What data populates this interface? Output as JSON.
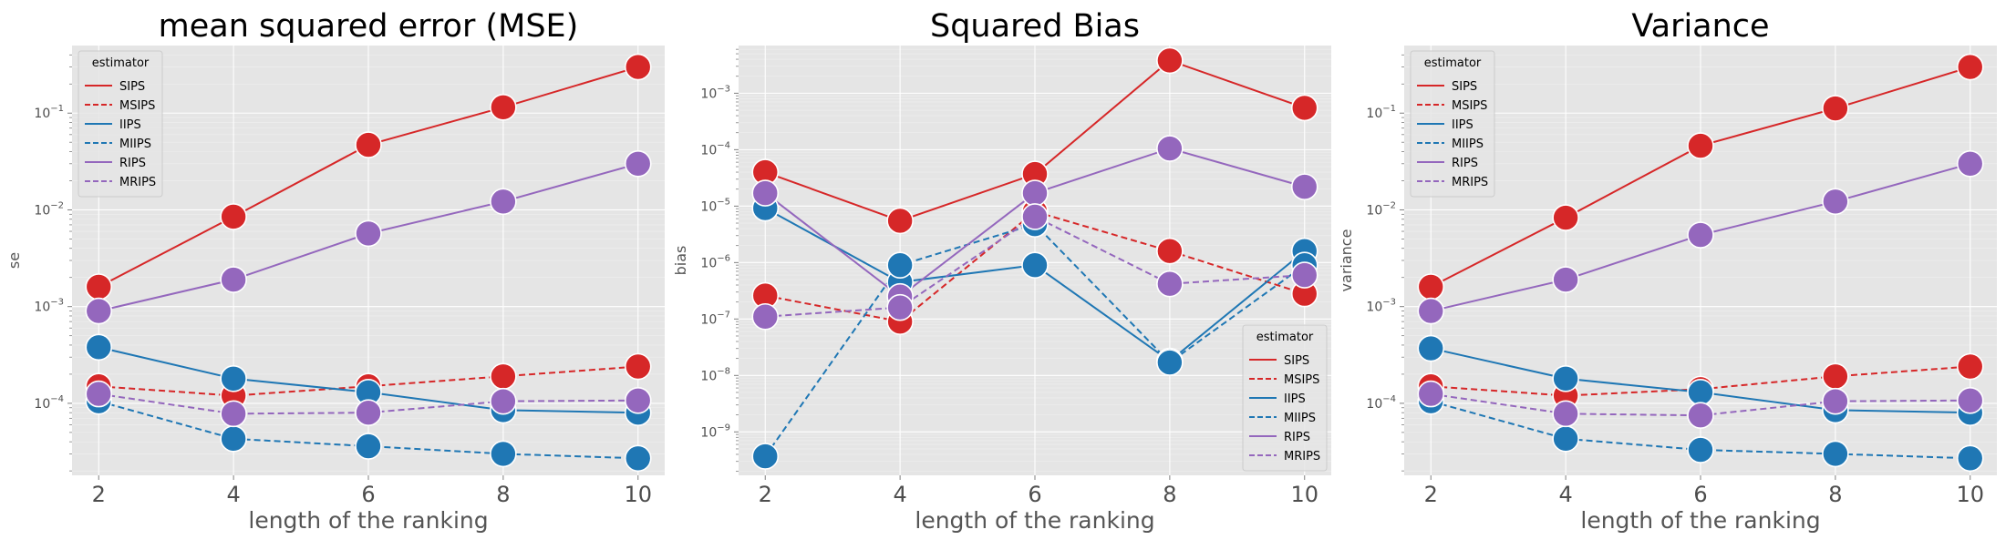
{
  "chart_data": [
    {
      "type": "line",
      "title": "mean squared error (MSE)",
      "xlabel": "length of the ranking",
      "ylabel": "se",
      "yscale": "log",
      "x": [
        2,
        4,
        6,
        8,
        10
      ],
      "xticks": [
        "2",
        "4",
        "6",
        "8",
        "10"
      ],
      "ylim": [
        1.8e-05,
        0.5
      ],
      "yticks": [
        {
          "v": 0.0001,
          "base": "10",
          "exp": "−4"
        },
        {
          "v": 0.001,
          "base": "10",
          "exp": "−3"
        },
        {
          "v": 0.01,
          "base": "10",
          "exp": "−2"
        },
        {
          "v": 0.1,
          "base": "10",
          "exp": "−1"
        }
      ],
      "grid": true,
      "legend": {
        "title": "estimator",
        "placement": "top-left"
      },
      "series": [
        {
          "name": "SIPS",
          "color": "#d62728",
          "dashed": false,
          "values": [
            0.0016,
            0.0085,
            0.047,
            0.115,
            0.3
          ]
        },
        {
          "name": "MSIPS",
          "color": "#d62728",
          "dashed": true,
          "values": [
            0.00015,
            0.00012,
            0.00015,
            0.00019,
            0.00024
          ]
        },
        {
          "name": "IIPS",
          "color": "#1f77b4",
          "dashed": false,
          "values": [
            0.00038,
            0.00018,
            0.00013,
            8.5e-05,
            8e-05
          ]
        },
        {
          "name": "MIIPS",
          "color": "#1f77b4",
          "dashed": true,
          "values": [
            0.000105,
            4.3e-05,
            3.6e-05,
            3e-05,
            2.7e-05
          ]
        },
        {
          "name": "RIPS",
          "color": "#9467bd",
          "dashed": false,
          "values": [
            0.0009,
            0.0019,
            0.0057,
            0.0122,
            0.03
          ]
        },
        {
          "name": "MRIPS",
          "color": "#9467bd",
          "dashed": true,
          "values": [
            0.000125,
            7.8e-05,
            8e-05,
            0.000105,
            0.000107
          ]
        }
      ]
    },
    {
      "type": "line",
      "title": "Squared Bias",
      "xlabel": "length of the ranking",
      "ylabel": "bias",
      "yscale": "log",
      "x": [
        2,
        4,
        6,
        8,
        10
      ],
      "xticks": [
        "2",
        "4",
        "6",
        "8",
        "10"
      ],
      "ylim": [
        1.7e-10,
        0.007
      ],
      "yticks": [
        {
          "v": 1e-09,
          "base": "10",
          "exp": "−9"
        },
        {
          "v": 1e-08,
          "base": "10",
          "exp": "−8"
        },
        {
          "v": 1e-07,
          "base": "10",
          "exp": "−7"
        },
        {
          "v": 1e-06,
          "base": "10",
          "exp": "−6"
        },
        {
          "v": 1e-05,
          "base": "10",
          "exp": "−5"
        },
        {
          "v": 0.0001,
          "base": "10",
          "exp": "−4"
        },
        {
          "v": 0.001,
          "base": "10",
          "exp": "−3"
        }
      ],
      "grid": true,
      "legend": {
        "title": "estimator",
        "placement": "bottom-right"
      },
      "series": [
        {
          "name": "SIPS",
          "color": "#d62728",
          "dashed": false,
          "values": [
            4e-05,
            5.5e-06,
            3.7e-05,
            0.0038,
            0.00055
          ]
        },
        {
          "name": "MSIPS",
          "color": "#d62728",
          "dashed": true,
          "values": [
            2.6e-07,
            9e-08,
            8e-06,
            1.6e-06,
            2.8e-07
          ]
        },
        {
          "name": "IIPS",
          "color": "#1f77b4",
          "dashed": false,
          "values": [
            9.2e-06,
            4.5e-07,
            9e-07,
            1.8e-08,
            1.6e-06
          ]
        },
        {
          "name": "MIIPS",
          "color": "#1f77b4",
          "dashed": true,
          "values": [
            3.7e-10,
            9e-07,
            4.8e-06,
            1.7e-08,
            9e-07
          ]
        },
        {
          "name": "RIPS",
          "color": "#9467bd",
          "dashed": false,
          "values": [
            1.7e-05,
            2.5e-07,
            1.7e-05,
            0.000105,
            2.2e-05
          ]
        },
        {
          "name": "MRIPS",
          "color": "#9467bd",
          "dashed": true,
          "values": [
            1.1e-07,
            1.6e-07,
            6.5e-06,
            4.2e-07,
            6e-07
          ]
        }
      ]
    },
    {
      "type": "line",
      "title": "Variance",
      "xlabel": "length of the ranking",
      "ylabel": "variance",
      "yscale": "log",
      "x": [
        2,
        4,
        6,
        8,
        10
      ],
      "xticks": [
        "2",
        "4",
        "6",
        "8",
        "10"
      ],
      "ylim": [
        1.8e-05,
        0.5
      ],
      "yticks": [
        {
          "v": 0.0001,
          "base": "10",
          "exp": "−4"
        },
        {
          "v": 0.001,
          "base": "10",
          "exp": "−3"
        },
        {
          "v": 0.01,
          "base": "10",
          "exp": "−2"
        },
        {
          "v": 0.1,
          "base": "10",
          "exp": "−1"
        }
      ],
      "grid": true,
      "legend": {
        "title": "estimator",
        "placement": "top-left"
      },
      "series": [
        {
          "name": "SIPS",
          "color": "#d62728",
          "dashed": false,
          "values": [
            0.0016,
            0.0083,
            0.046,
            0.112,
            0.3
          ]
        },
        {
          "name": "MSIPS",
          "color": "#d62728",
          "dashed": true,
          "values": [
            0.00015,
            0.00012,
            0.00014,
            0.00019,
            0.00024
          ]
        },
        {
          "name": "IIPS",
          "color": "#1f77b4",
          "dashed": false,
          "values": [
            0.00037,
            0.00018,
            0.00013,
            8.5e-05,
            8e-05
          ]
        },
        {
          "name": "MIIPS",
          "color": "#1f77b4",
          "dashed": true,
          "values": [
            0.000105,
            4.3e-05,
            3.3e-05,
            3e-05,
            2.7e-05
          ]
        },
        {
          "name": "RIPS",
          "color": "#9467bd",
          "dashed": false,
          "values": [
            0.0009,
            0.0019,
            0.0055,
            0.0122,
            0.03
          ]
        },
        {
          "name": "MRIPS",
          "color": "#9467bd",
          "dashed": true,
          "values": [
            0.000125,
            7.8e-05,
            7.5e-05,
            0.000105,
            0.000107
          ]
        }
      ]
    }
  ]
}
